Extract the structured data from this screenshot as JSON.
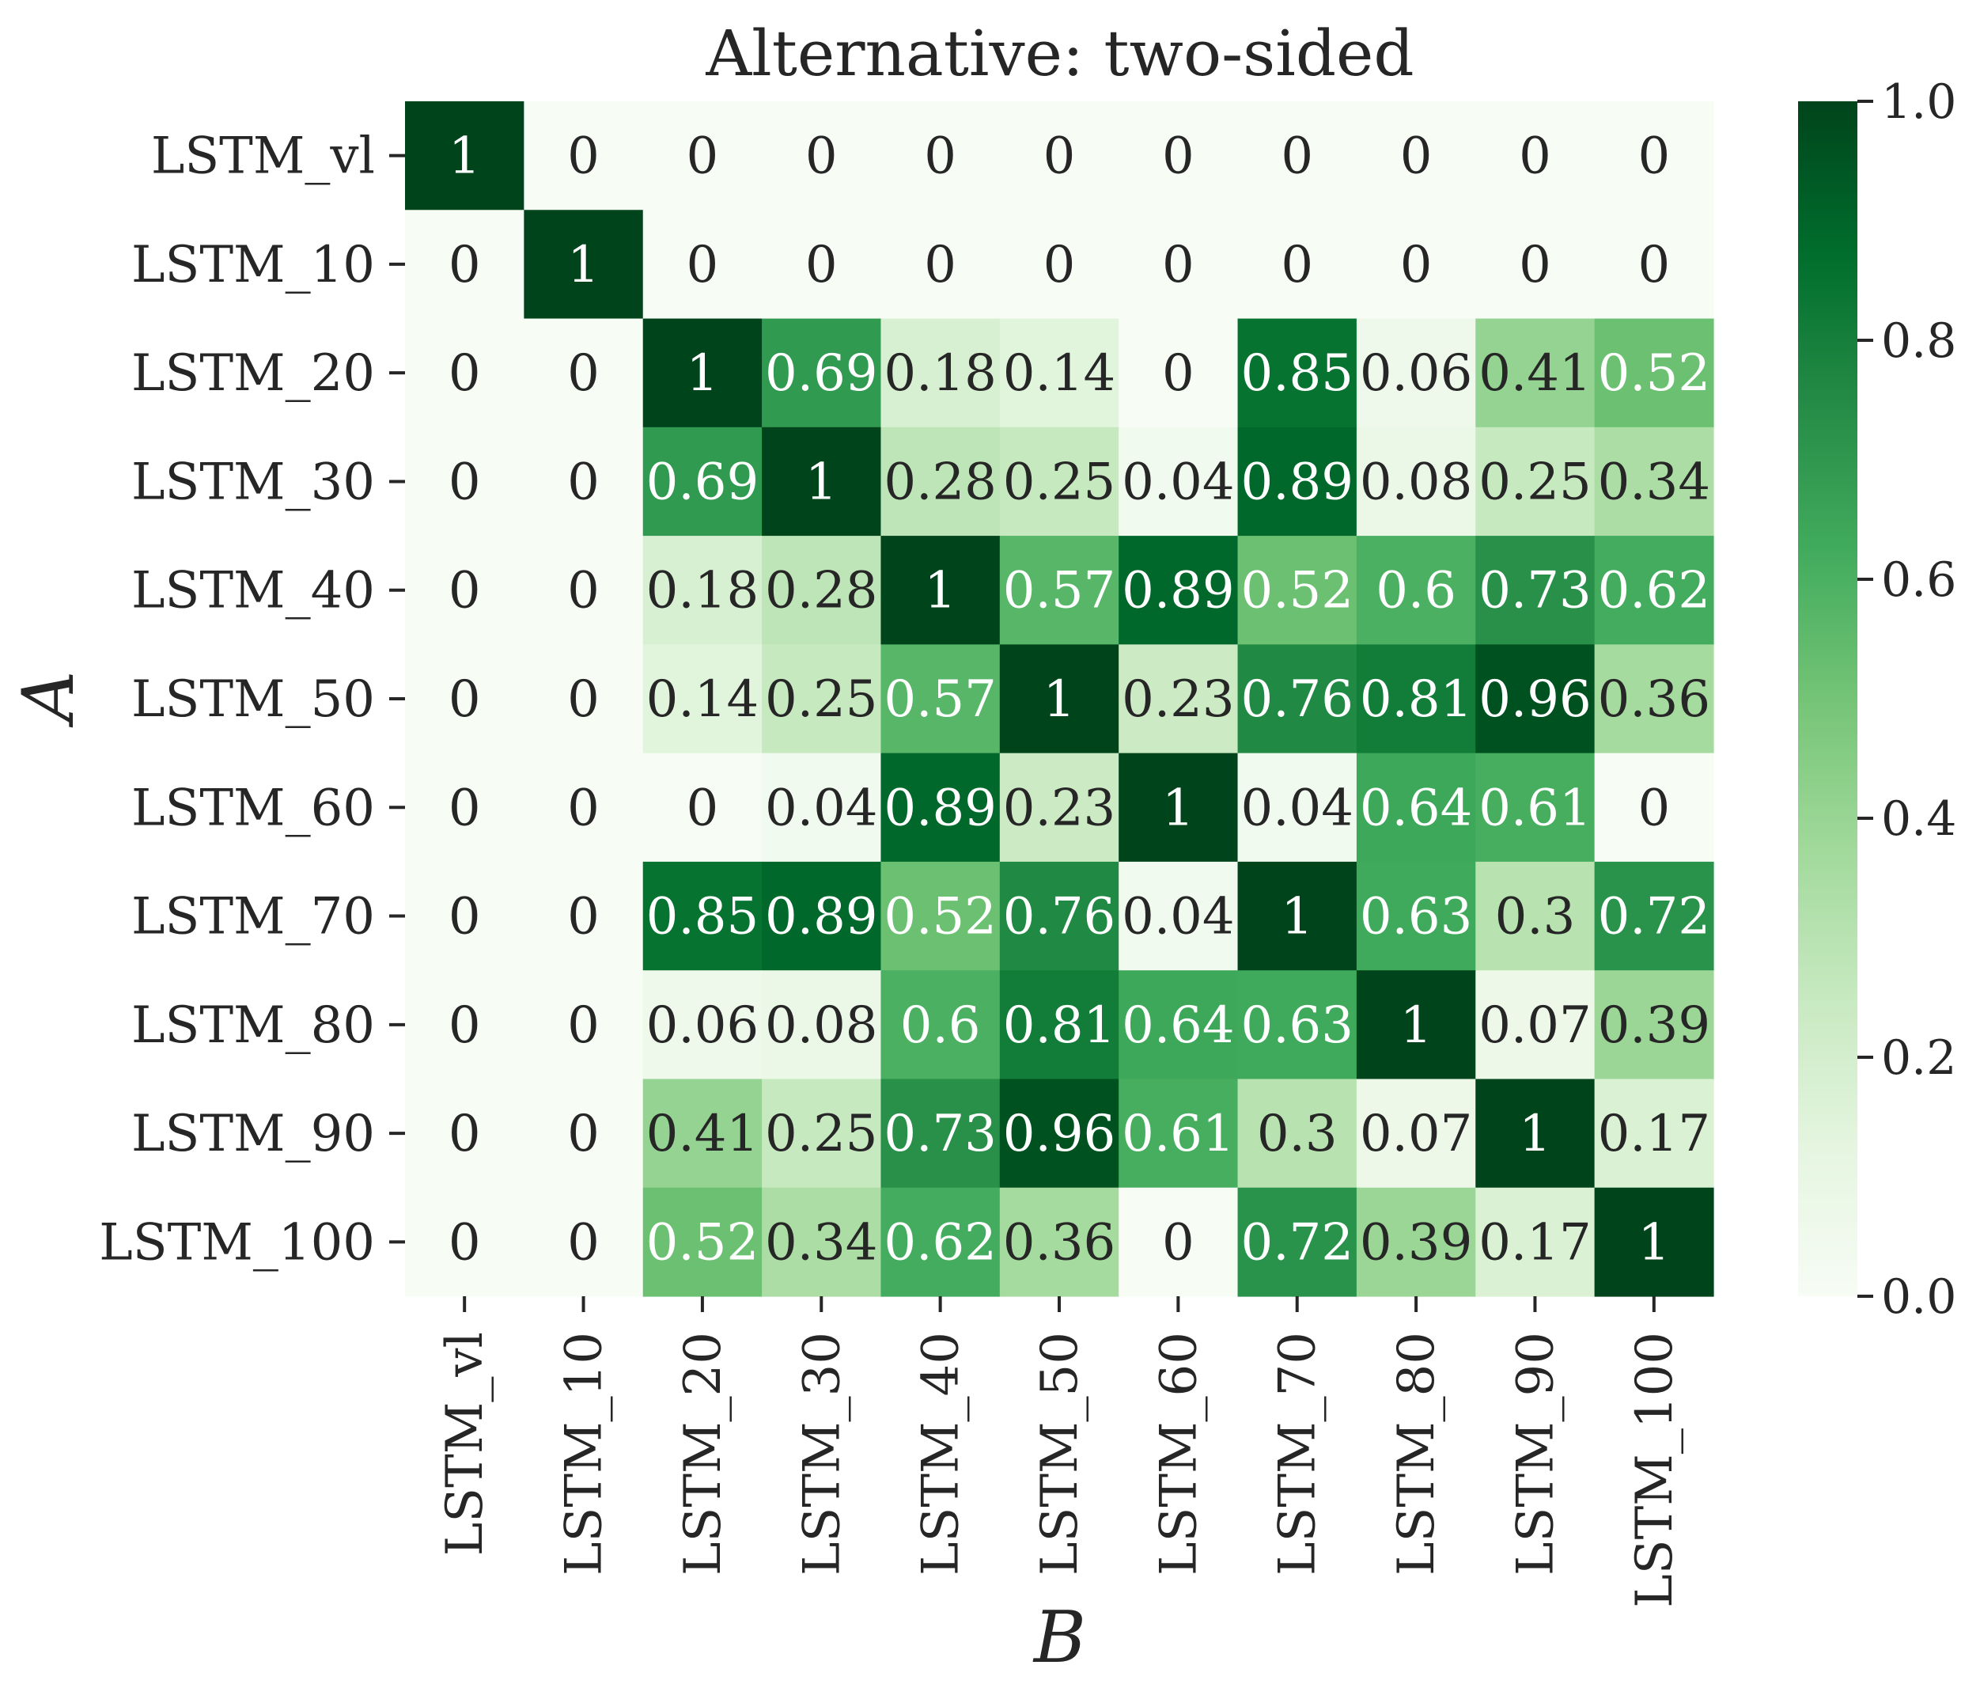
{
  "chart_data": {
    "type": "heatmap",
    "title": "Alternative:  two-sided",
    "xlabel": "B",
    "ylabel": "A",
    "x_categories": [
      "LSTM_vl",
      "LSTM_10",
      "LSTM_20",
      "LSTM_30",
      "LSTM_40",
      "LSTM_50",
      "LSTM_60",
      "LSTM_70",
      "LSTM_80",
      "LSTM_90",
      "LSTM_100"
    ],
    "y_categories": [
      "LSTM_vl",
      "LSTM_10",
      "LSTM_20",
      "LSTM_30",
      "LSTM_40",
      "LSTM_50",
      "LSTM_60",
      "LSTM_70",
      "LSTM_80",
      "LSTM_90",
      "LSTM_100"
    ],
    "values": [
      [
        1,
        0,
        0,
        0,
        0,
        0,
        0,
        0,
        0,
        0,
        0
      ],
      [
        0,
        1,
        0,
        0,
        0,
        0,
        0,
        0,
        0,
        0,
        0
      ],
      [
        0,
        0,
        1,
        0.69,
        0.18,
        0.14,
        0,
        0.85,
        0.06,
        0.41,
        0.52
      ],
      [
        0,
        0,
        0.69,
        1,
        0.28,
        0.25,
        0.04,
        0.89,
        0.08,
        0.25,
        0.34
      ],
      [
        0,
        0,
        0.18,
        0.28,
        1,
        0.57,
        0.89,
        0.52,
        0.6,
        0.73,
        0.62
      ],
      [
        0,
        0,
        0.14,
        0.25,
        0.57,
        1,
        0.23,
        0.76,
        0.81,
        0.96,
        0.36
      ],
      [
        0,
        0,
        0,
        0.04,
        0.89,
        0.23,
        1,
        0.04,
        0.64,
        0.61,
        0
      ],
      [
        0,
        0,
        0.85,
        0.89,
        0.52,
        0.76,
        0.04,
        1,
        0.63,
        0.3,
        0.72
      ],
      [
        0,
        0,
        0.06,
        0.08,
        0.6,
        0.81,
        0.64,
        0.63,
        1,
        0.07,
        0.39
      ],
      [
        0,
        0,
        0.41,
        0.25,
        0.73,
        0.96,
        0.61,
        0.3,
        0.07,
        1,
        0.17
      ],
      [
        0,
        0,
        0.52,
        0.34,
        0.62,
        0.36,
        0,
        0.72,
        0.39,
        0.17,
        1
      ]
    ],
    "vmin": 0,
    "vmax": 1,
    "colormap": "Greens",
    "colorbar_ticks": [
      "0.0",
      "0.2",
      "0.4",
      "0.6",
      "0.8",
      "1.0"
    ],
    "colorbar_placement": "right",
    "annotated": true,
    "grid": false
  }
}
